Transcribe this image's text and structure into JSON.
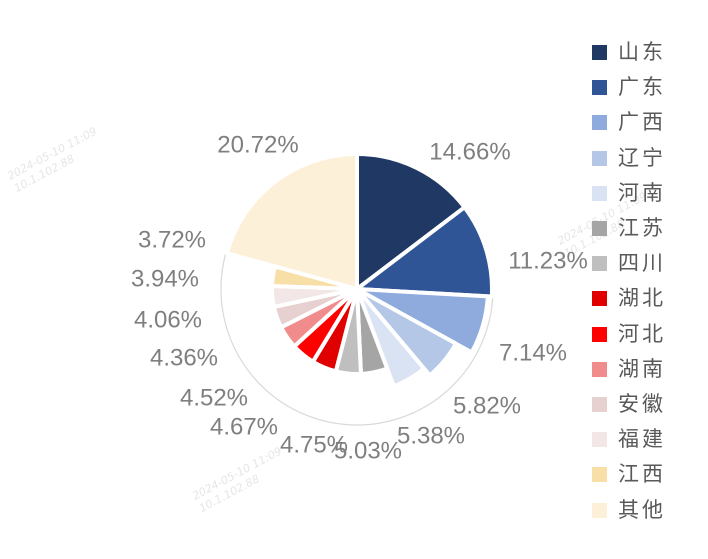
{
  "chart_data": {
    "type": "pie",
    "title": "",
    "legend_position": "right",
    "slices": [
      {
        "name": "山东",
        "value": 14.66,
        "label": "14.66%",
        "color": "#1f3864"
      },
      {
        "name": "广东",
        "value": 11.23,
        "label": "11.23%",
        "color": "#2f5597"
      },
      {
        "name": "广西",
        "value": 7.14,
        "label": "7.14%",
        "color": "#8faadc"
      },
      {
        "name": "辽宁",
        "value": 5.82,
        "label": "5.82%",
        "color": "#b4c7e7"
      },
      {
        "name": "河南",
        "value": 5.38,
        "label": "5.38%",
        "color": "#dae3f3"
      },
      {
        "name": "江苏",
        "value": 5.03,
        "label": "5.03%",
        "color": "#a5a5a5"
      },
      {
        "name": "四川",
        "value": 4.75,
        "label": "4.75%",
        "color": "#bfbfbf"
      },
      {
        "name": "湖北",
        "value": 4.67,
        "label": "4.67%",
        "color": "#e00000"
      },
      {
        "name": "河北",
        "value": 4.52,
        "label": "4.52%",
        "color": "#ff0000"
      },
      {
        "name": "湖南",
        "value": 4.36,
        "label": "4.36%",
        "color": "#f08c8c"
      },
      {
        "name": "安徽",
        "value": 4.06,
        "label": "4.06%",
        "color": "#e6d0d0"
      },
      {
        "name": "福建",
        "value": 3.94,
        "label": "3.94%",
        "color": "#f2e6e6"
      },
      {
        "name": "江西",
        "value": 3.72,
        "label": "3.72%",
        "color": "#f8dfa8"
      },
      {
        "name": "其他",
        "value": 20.72,
        "label": "20.72%",
        "color": "#fdf0d8"
      }
    ]
  },
  "watermark": {
    "date": "2024-05-10  11:09",
    "ip": "10.1.102.88"
  }
}
